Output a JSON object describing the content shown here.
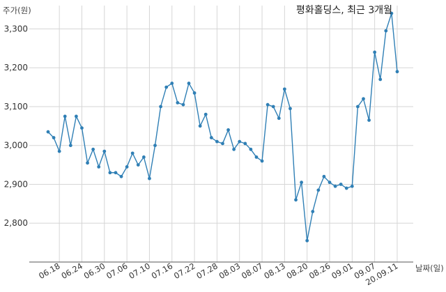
{
  "chart_data": {
    "type": "line",
    "title": "평화홀딩스, 최근 3개월",
    "ylabel": "주가(원)",
    "xlabel": "날짜(일)",
    "ylim": [
      2700,
      3360
    ],
    "yticks": [
      2800,
      2900,
      3000,
      3100,
      3200,
      3300
    ],
    "ytick_labels": [
      "2,800",
      "2,900",
      "3,000",
      "3,100",
      "3,200",
      "3,300"
    ],
    "xtick_labels": [
      "06.18",
      "06.24",
      "06.30",
      "07.06",
      "07.10",
      "07.16",
      "07.22",
      "07.28",
      "08.03",
      "08.07",
      "08.13",
      "08.20",
      "08.26",
      "09.01",
      "09.07",
      "20.09.11"
    ],
    "xtick_index": [
      2,
      6,
      10,
      14,
      18,
      22,
      26,
      30,
      34,
      38,
      42,
      46,
      50,
      54,
      58,
      62
    ],
    "grid": true,
    "values": [
      3035,
      3020,
      2985,
      3075,
      3000,
      3075,
      3045,
      2955,
      2990,
      2945,
      2985,
      2930,
      2930,
      2920,
      2945,
      2980,
      2950,
      2970,
      2915,
      3000,
      3100,
      3150,
      3160,
      3110,
      3105,
      3160,
      3135,
      3050,
      3080,
      3020,
      3010,
      3005,
      3040,
      2990,
      3010,
      3005,
      2990,
      2970,
      2960,
      3105,
      3100,
      3070,
      3145,
      3095,
      2860,
      2905,
      2755,
      2830,
      2885,
      2920,
      2905,
      2895,
      2900,
      2890,
      2895,
      3100,
      3120,
      3065,
      3240,
      3170,
      3295,
      3340,
      3190
    ]
  }
}
